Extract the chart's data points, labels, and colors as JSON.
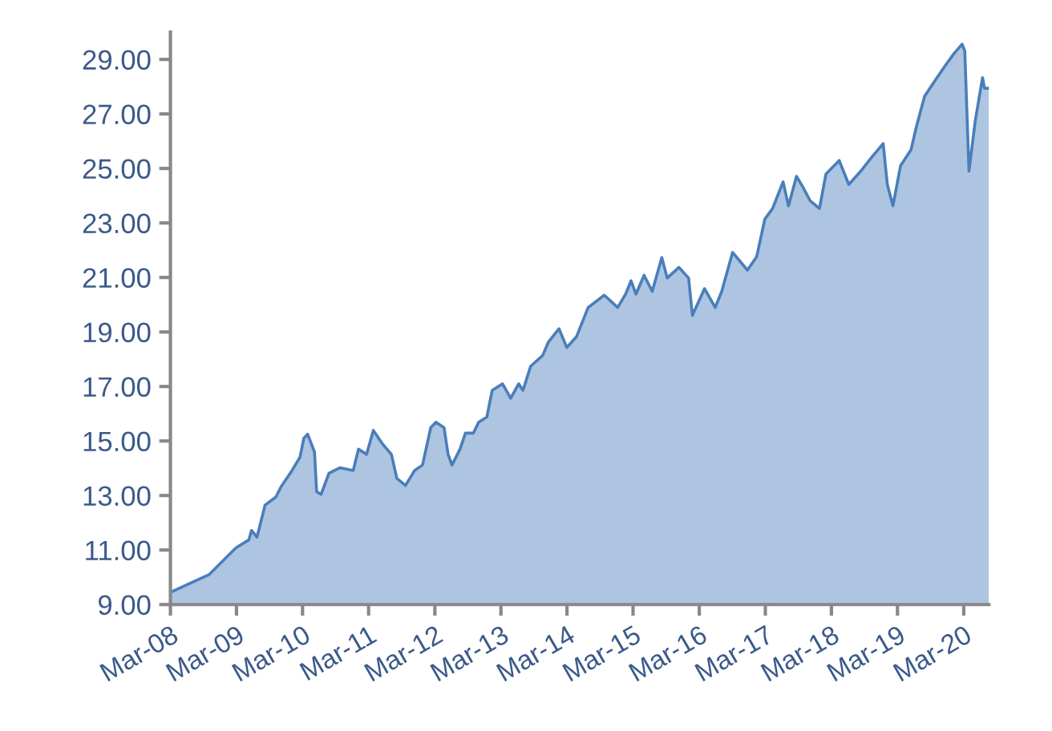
{
  "chart_data": {
    "type": "area",
    "x": [
      "2008-03-01",
      "2008-10-01",
      "2009-02-26",
      "2009-05-08",
      "2009-05-23",
      "2009-06-22",
      "2009-08-06",
      "2009-10-04",
      "2009-11-03",
      "2010-01-02",
      "2010-02-15",
      "2010-03-08",
      "2010-03-29",
      "2010-05-06",
      "2010-05-18",
      "2010-06-11",
      "2010-07-25",
      "2010-09-23",
      "2010-12-06",
      "2011-01-04",
      "2011-02-18",
      "2011-03-27",
      "2011-05-16",
      "2011-07-05",
      "2011-08-04",
      "2011-09-21",
      "2011-11-10",
      "2011-12-24",
      "2012-02-07",
      "2012-03-07",
      "2012-04-21",
      "2012-05-13",
      "2012-06-04",
      "2012-07-18",
      "2012-08-17",
      "2012-09-30",
      "2012-10-29",
      "2012-12-13",
      "2013-01-12",
      "2013-03-10",
      "2013-04-24",
      "2013-06-07",
      "2013-07-01",
      "2013-08-12",
      "2013-10-18",
      "2013-11-18",
      "2014-01-16",
      "2014-02-28",
      "2014-04-22",
      "2014-06-26",
      "2014-09-23",
      "2014-12-06",
      "2015-01-19",
      "2015-02-18",
      "2015-03-17",
      "2015-05-01",
      "2015-06-15",
      "2015-08-07",
      "2015-09-06",
      "2015-11-09",
      "2016-01-02",
      "2016-01-23",
      "2016-03-30",
      "2016-05-28",
      "2016-07-03",
      "2016-09-01",
      "2016-11-22",
      "2017-01-12",
      "2017-02-26",
      "2017-04-10",
      "2017-06-07",
      "2017-07-07",
      "2017-08-20",
      "2017-09-25",
      "2017-11-03",
      "2017-12-25",
      "2018-01-30",
      "2018-04-13",
      "2018-06-05",
      "2018-08-10",
      "2018-10-07",
      "2018-12-12",
      "2019-01-04",
      "2019-02-04",
      "2019-03-18",
      "2019-05-15",
      "2019-06-15",
      "2019-07-29",
      "2019-09-26",
      "2019-11-25",
      "2020-01-08",
      "2020-02-21",
      "2020-03-07",
      "2020-03-30",
      "2020-05-04",
      "2020-06-13",
      "2020-06-24",
      "2020-07-18"
    ],
    "series": [
      {
        "color": "#4a7ebb",
        "values": [
          9.45,
          10.1,
          11.08,
          11.37,
          11.72,
          11.47,
          12.65,
          12.94,
          13.33,
          13.92,
          14.41,
          15.1,
          15.25,
          14.6,
          13.14,
          13.04,
          13.82,
          14.02,
          13.92,
          14.7,
          14.51,
          15.39,
          14.9,
          14.51,
          13.63,
          13.37,
          13.92,
          14.12,
          15.49,
          15.69,
          15.49,
          14.51,
          14.12,
          14.7,
          15.29,
          15.29,
          15.69,
          15.88,
          16.86,
          17.1,
          16.57,
          17.1,
          16.86,
          17.74,
          18.14,
          18.63,
          19.12,
          18.43,
          18.82,
          19.9,
          20.35,
          19.9,
          20.39,
          20.88,
          20.39,
          21.08,
          20.49,
          21.73,
          20.98,
          21.37,
          20.98,
          19.61,
          20.59,
          19.9,
          20.49,
          21.92,
          21.27,
          21.76,
          23.14,
          23.53,
          24.51,
          23.63,
          24.71,
          24.31,
          23.82,
          23.53,
          24.8,
          25.29,
          24.41,
          24.9,
          25.39,
          25.91,
          24.41,
          23.63,
          25.1,
          25.69,
          26.57,
          27.65,
          28.24,
          28.82,
          29.22,
          29.56,
          29.31,
          24.9,
          26.76,
          28.33,
          27.94,
          27.94
        ]
      }
    ],
    "xlim": [
      "2008-03-01",
      "2020-07-18"
    ],
    "xticks": [
      {
        "value": "2008-03-01",
        "label": "Mar-08"
      },
      {
        "value": "2009-03-01",
        "label": "Mar-09"
      },
      {
        "value": "2010-03-01",
        "label": "Mar-10"
      },
      {
        "value": "2011-03-01",
        "label": "Mar-11"
      },
      {
        "value": "2012-03-01",
        "label": "Mar-12"
      },
      {
        "value": "2013-03-01",
        "label": "Mar-13"
      },
      {
        "value": "2014-03-01",
        "label": "Mar-14"
      },
      {
        "value": "2015-03-01",
        "label": "Mar-15"
      },
      {
        "value": "2016-03-01",
        "label": "Mar-16"
      },
      {
        "value": "2017-03-01",
        "label": "Mar-17"
      },
      {
        "value": "2018-03-01",
        "label": "Mar-18"
      },
      {
        "value": "2019-03-01",
        "label": "Mar-19"
      },
      {
        "value": "2020-03-01",
        "label": "Mar-20"
      }
    ],
    "ylim": [
      9,
      30
    ],
    "yticks": [
      {
        "value": 9,
        "label": "9.00"
      },
      {
        "value": 11,
        "label": "11.00"
      },
      {
        "value": 13,
        "label": "13.00"
      },
      {
        "value": 15,
        "label": "15.00"
      },
      {
        "value": 17,
        "label": "17.00"
      },
      {
        "value": 19,
        "label": "19.00"
      },
      {
        "value": 21,
        "label": "21.00"
      },
      {
        "value": 23,
        "label": "23.00"
      },
      {
        "value": 25,
        "label": "25.00"
      },
      {
        "value": 27,
        "label": "27.00"
      },
      {
        "value": 29,
        "label": "29.00"
      }
    ],
    "grid": false
  }
}
